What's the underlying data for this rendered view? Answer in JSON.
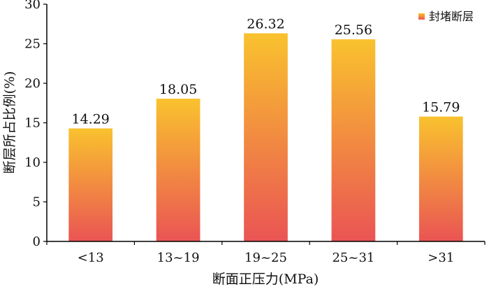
{
  "chart_data": {
    "type": "bar",
    "title": "",
    "xlabel": "断面正压力(MPa)",
    "ylabel": "断层所占比例(%)",
    "categories": [
      "<13",
      "13~19",
      "19~25",
      "25~31",
      ">31"
    ],
    "series": [
      {
        "name": "封堵断层",
        "values": [
          14.29,
          18.05,
          26.32,
          25.56,
          15.79
        ]
      }
    ],
    "value_labels": [
      "14.29",
      "18.05",
      "26.32",
      "25.56",
      "15.79"
    ],
    "ylim": [
      0,
      30
    ],
    "yticks": [
      0,
      5,
      10,
      15,
      20,
      25,
      30
    ],
    "grid": false,
    "legend_position": "top-right",
    "colors": {
      "bar_top": "#F9C22E",
      "bar_bottom": "#EA5454",
      "axis": "#000000"
    }
  }
}
